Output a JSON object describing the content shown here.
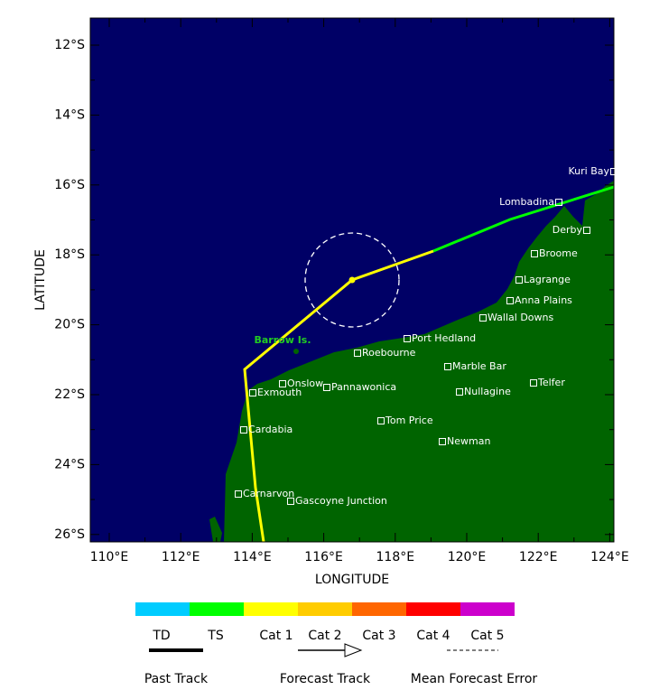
{
  "axes": {
    "y_label": "LATITUDE",
    "x_label": "LONGITUDE",
    "yticks": [
      "12°S",
      "14°S",
      "16°S",
      "18°S",
      "20°S",
      "22°S",
      "24°S",
      "26°S"
    ],
    "xticks": [
      "110°E",
      "112°E",
      "114°E",
      "116°E",
      "118°E",
      "120°E",
      "122°E",
      "124°E"
    ]
  },
  "places": [
    "Kuri Bay",
    "Lombadina",
    "Derby",
    "Broome",
    "Lagrange",
    "Anna Plains",
    "Wallal Downs",
    "Port Hedland",
    "Roebourne",
    "Marble Bar",
    "Telfer",
    "Onslow",
    "Pannawonica",
    "Exmouth",
    "Nullagine",
    "Tom Price",
    "Cardabia",
    "Newman",
    "Carnarvon",
    "Gascoyne Junction"
  ],
  "island": "Barrow Is.",
  "legend": {
    "categories": [
      "TD",
      "TS",
      "Cat 1",
      "Cat 2",
      "Cat 3",
      "Cat 4",
      "Cat 5"
    ],
    "tracks": [
      "Past Track",
      "Forecast Track",
      "Mean Forecast Error"
    ]
  }
}
